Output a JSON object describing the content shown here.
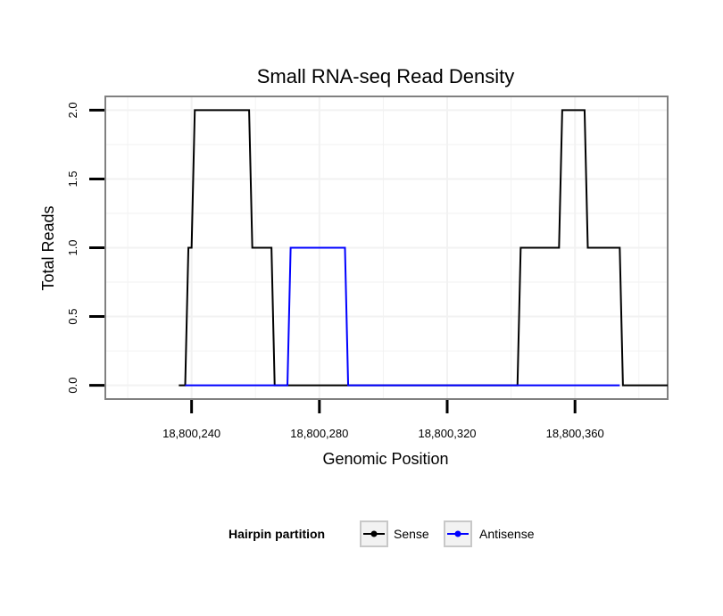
{
  "chart_data": {
    "type": "line",
    "title": "Small RNA-seq Read Density",
    "xlabel": "Genomic Position",
    "ylabel": "Total Reads",
    "xlim": [
      18800213,
      18800389
    ],
    "ylim": [
      -0.1,
      2.1
    ],
    "x_ticks": [
      {
        "value": 18800240,
        "label": "18,800,240"
      },
      {
        "value": 18800280,
        "label": "18,800,280"
      },
      {
        "value": 18800320,
        "label": "18,800,320"
      },
      {
        "value": 18800360,
        "label": "18,800,360"
      }
    ],
    "y_ticks": [
      {
        "value": 0,
        "label": "0.0"
      },
      {
        "value": 0.5,
        "label": "0.5"
      },
      {
        "value": 1,
        "label": "1.0"
      },
      {
        "value": 1.5,
        "label": "1.5"
      },
      {
        "value": 2,
        "label": "2.0"
      }
    ],
    "grid": true,
    "legend": {
      "title": "Hairpin partition",
      "position": "bottom"
    },
    "series": [
      {
        "name": "Sense",
        "color": "#000000",
        "x": [
          18800236,
          18800238,
          18800239,
          18800240,
          18800241,
          18800258,
          18800259,
          18800265,
          18800266,
          18800309,
          18800342,
          18800343,
          18800355,
          18800356,
          18800363,
          18800364,
          18800374,
          18800375,
          18800389
        ],
        "y": [
          0,
          0,
          1,
          1,
          2,
          2,
          1,
          1,
          0,
          0,
          0,
          1,
          1,
          2,
          2,
          1,
          1,
          0,
          0
        ]
      },
      {
        "name": "Antisense",
        "color": "#0000ff",
        "x": [
          18800238,
          18800270,
          18800271,
          18800288,
          18800289,
          18800374
        ],
        "y": [
          0,
          0,
          1,
          1,
          0,
          0
        ]
      }
    ]
  }
}
